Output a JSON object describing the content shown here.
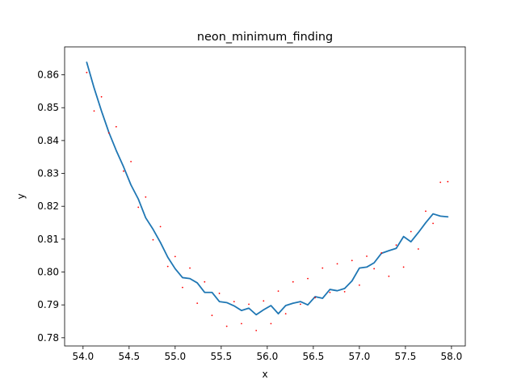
{
  "chart_data": {
    "type": "line",
    "title": "neon_minimum_finding",
    "xlabel": "x",
    "ylabel": "y",
    "xlim": [
      53.8,
      58.15
    ],
    "ylim": [
      0.7775,
      0.8685
    ],
    "x_ticks": [
      54.0,
      54.5,
      55.0,
      55.5,
      56.0,
      56.5,
      57.0,
      57.5,
      58.0
    ],
    "x_tick_labels": [
      "54.0",
      "54.5",
      "55.0",
      "55.5",
      "56.0",
      "56.5",
      "57.0",
      "57.5",
      "58.0"
    ],
    "y_ticks": [
      0.78,
      0.79,
      0.8,
      0.81,
      0.82,
      0.83,
      0.84,
      0.85,
      0.86
    ],
    "y_tick_labels": [
      "0.78",
      "0.79",
      "0.80",
      "0.81",
      "0.82",
      "0.83",
      "0.84",
      "0.85",
      "0.86"
    ],
    "grid": false,
    "legend": "none",
    "series": [
      {
        "kind": "line",
        "color": "#1f77b4",
        "x": [
          54.04,
          54.12,
          54.2,
          54.28,
          54.36,
          54.44,
          54.52,
          54.6,
          54.68,
          54.76,
          54.84,
          54.92,
          55.0,
          55.08,
          55.16,
          55.24,
          55.32,
          55.4,
          55.48,
          55.56,
          55.64,
          55.72,
          55.8,
          55.88,
          55.96,
          56.04,
          56.12,
          56.2,
          56.28,
          56.36,
          56.44,
          56.52,
          56.6,
          56.68,
          56.76,
          56.84,
          56.92,
          57.0,
          57.08,
          57.16,
          57.24,
          57.32,
          57.4,
          57.48,
          57.56,
          57.64,
          57.72,
          57.8,
          57.88,
          57.96
        ],
        "y": [
          0.8638,
          0.856,
          0.849,
          0.8425,
          0.837,
          0.832,
          0.8265,
          0.8222,
          0.8165,
          0.813,
          0.809,
          0.8045,
          0.801,
          0.7983,
          0.798,
          0.7967,
          0.7938,
          0.7938,
          0.791,
          0.7907,
          0.7897,
          0.7883,
          0.789,
          0.787,
          0.7885,
          0.7898,
          0.7873,
          0.7898,
          0.7905,
          0.791,
          0.79,
          0.7925,
          0.792,
          0.7947,
          0.7943,
          0.795,
          0.7973,
          0.8012,
          0.8015,
          0.8028,
          0.8057,
          0.8065,
          0.8072,
          0.8108,
          0.8092,
          0.812,
          0.815,
          0.8177,
          0.817,
          0.8168
        ]
      },
      {
        "kind": "scatter",
        "color": "#ff0000",
        "x": [
          54.04,
          54.12,
          54.2,
          54.28,
          54.36,
          54.44,
          54.52,
          54.6,
          54.68,
          54.76,
          54.84,
          54.92,
          55.0,
          55.08,
          55.16,
          55.24,
          55.32,
          55.4,
          55.48,
          55.56,
          55.64,
          55.72,
          55.8,
          55.88,
          55.96,
          56.04,
          56.12,
          56.2,
          56.28,
          56.36,
          56.44,
          56.52,
          56.6,
          56.68,
          56.76,
          56.84,
          56.92,
          57.0,
          57.08,
          57.16,
          57.24,
          57.32,
          57.4,
          57.48,
          57.56,
          57.64,
          57.72,
          57.8,
          57.88,
          57.96
        ],
        "y": [
          0.8607,
          0.849,
          0.8533,
          0.8423,
          0.8442,
          0.8307,
          0.8336,
          0.8197,
          0.8228,
          0.8098,
          0.8138,
          0.8017,
          0.8047,
          0.7953,
          0.8012,
          0.7905,
          0.797,
          0.7868,
          0.7935,
          0.7835,
          0.791,
          0.7843,
          0.7902,
          0.7822,
          0.7912,
          0.7843,
          0.7942,
          0.7873,
          0.797,
          0.7902,
          0.798,
          0.7922,
          0.8012,
          0.7938,
          0.8025,
          0.794,
          0.8035,
          0.796,
          0.8048,
          0.801,
          0.8058,
          0.7987,
          0.8082,
          0.8015,
          0.8123,
          0.807,
          0.8185,
          0.8148,
          0.8273,
          0.8275
        ]
      }
    ]
  }
}
